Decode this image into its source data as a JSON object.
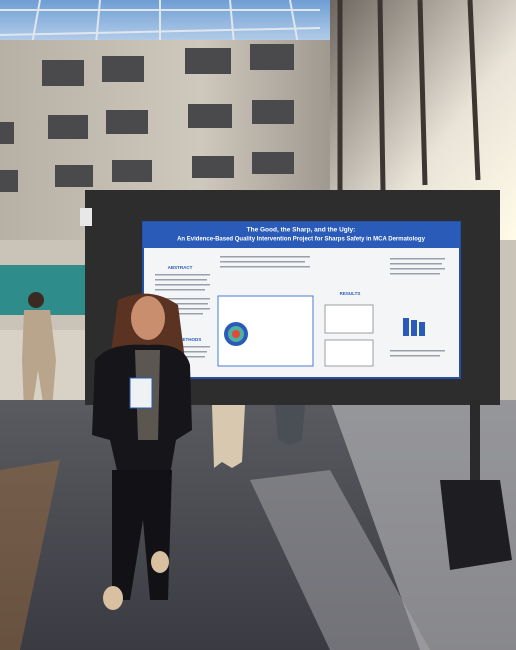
{
  "poster": {
    "title": "The Good, the Sharp, and the Ugly:",
    "subtitle": "An Evidence-Based Quality Intervention Project for Sharps Safety in MCA Dermatology",
    "sections": [
      "ABSTRACT",
      "METHODS",
      "RESULTS"
    ]
  }
}
